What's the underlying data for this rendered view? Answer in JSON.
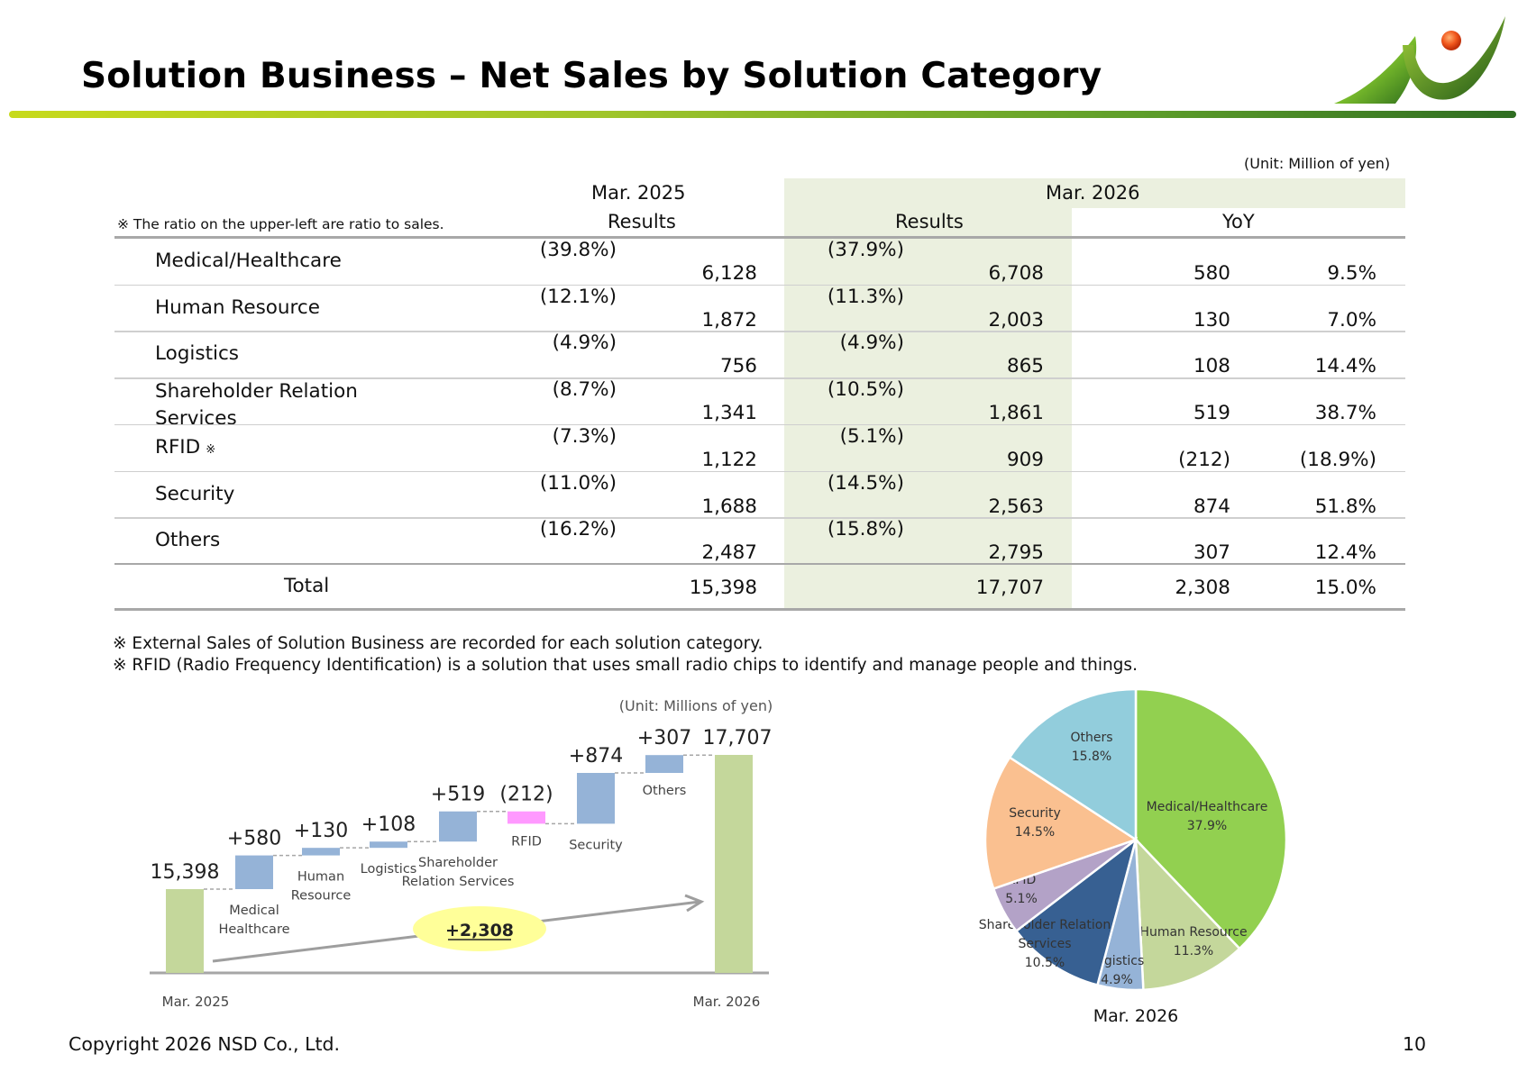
{
  "header": {
    "title": "Solution Business – Net Sales by Solution Category",
    "unit": "(Unit: Million of yen)",
    "ratio_note": "※ The ratio on the upper-left are ratio to sales."
  },
  "table": {
    "col_group_2025": "Mar. 2025",
    "col_group_2026": "Mar. 2026",
    "col_results_2025": "Results",
    "col_results_2026": "Results",
    "col_yoy": "YoY",
    "rows": [
      {
        "label": "Medical/Healthcare",
        "ratio_2025": "(39.8%)",
        "value_2025": "6,128",
        "ratio_2026": "(37.9%)",
        "value_2026": "6,708",
        "yoy": "580",
        "yoy_pct": "9.5%"
      },
      {
        "label": "Human Resource",
        "ratio_2025": "(12.1%)",
        "value_2025": "1,872",
        "ratio_2026": "(11.3%)",
        "value_2026": "2,003",
        "yoy": "130",
        "yoy_pct": "7.0%"
      },
      {
        "label": "Logistics",
        "ratio_2025": "(4.9%)",
        "value_2025": "756",
        "ratio_2026": "(4.9%)",
        "value_2026": "865",
        "yoy": "108",
        "yoy_pct": "14.4%"
      },
      {
        "label": "Shareholder Relation",
        "label2": "Services",
        "ratio_2025": "(8.7%)",
        "value_2025": "1,341",
        "ratio_2026": "(10.5%)",
        "value_2026": "1,861",
        "yoy": "519",
        "yoy_pct": "38.7%"
      },
      {
        "label": "RFID",
        "mark": "※",
        "ratio_2025": "(7.3%)",
        "value_2025": "1,122",
        "ratio_2026": "(5.1%)",
        "value_2026": "909",
        "yoy": "(212)",
        "yoy_pct": "(18.9%)"
      },
      {
        "label": "Security",
        "ratio_2025": "(11.0%)",
        "value_2025": "1,688",
        "ratio_2026": "(14.5%)",
        "value_2026": "2,563",
        "yoy": "874",
        "yoy_pct": "51.8%"
      },
      {
        "label": "Others",
        "ratio_2025": "(16.2%)",
        "value_2025": "2,487",
        "ratio_2026": "(15.8%)",
        "value_2026": "2,795",
        "yoy": "307",
        "yoy_pct": "12.4%"
      }
    ],
    "total": {
      "label": "Total",
      "value_2025": "15,398",
      "value_2026": "17,707",
      "yoy": "2,308",
      "yoy_pct": "15.0%"
    }
  },
  "footnotes": [
    "※ External Sales of Solution Business are recorded for each solution category.",
    "※ RFID (Radio Frequency Identification) is a solution that uses small radio chips to identify and manage people and things."
  ],
  "chart_data": [
    {
      "type": "bar",
      "subtype": "waterfall",
      "unit_label": "(Unit: Millions of yen)",
      "start": {
        "category": "Mar. 2025",
        "value": 15398,
        "label": "15,398"
      },
      "steps": [
        {
          "name": "Medical\nHealthcare",
          "delta": 580,
          "label": "+580",
          "color": "#95b3d7"
        },
        {
          "name": "Human\nResource",
          "delta": 130,
          "label": "+130",
          "color": "#95b3d7"
        },
        {
          "name": "Logistics",
          "delta": 108,
          "label": "+108",
          "color": "#95b3d7"
        },
        {
          "name": "Shareholder\nRelation Services",
          "delta": 519,
          "label": "+519",
          "color": "#95b3d7"
        },
        {
          "name": "RFID",
          "delta": -212,
          "label": "(212)",
          "color": "#ff99ff"
        },
        {
          "name": "Security",
          "delta": 874,
          "label": "+874",
          "color": "#95b3d7"
        },
        {
          "name": "Others",
          "delta": 307,
          "label": "+307",
          "color": "#95b3d7"
        }
      ],
      "end": {
        "category": "Mar. 2026",
        "value": 17707,
        "label": "17,707"
      },
      "total_change_label": "+2,308",
      "endpoint_color": "#c4d79b",
      "x_labels": [
        "Mar. 2025",
        "Mar. 2026"
      ]
    },
    {
      "type": "pie",
      "caption": "Mar. 2026",
      "slices": [
        {
          "name": "Medical/Healthcare",
          "value": 37.9,
          "label": "37.9%",
          "color": "#92d050"
        },
        {
          "name": "Human Resource",
          "value": 11.3,
          "label": "11.3%",
          "color": "#c4d79b"
        },
        {
          "name": "Logistics",
          "value": 4.9,
          "label": "4.9%",
          "color": "#95b3d7"
        },
        {
          "name": "Shareholder Relation\nServices",
          "value": 10.5,
          "label": "10.5%",
          "color": "#376092"
        },
        {
          "name": "RFID",
          "value": 5.1,
          "label": "5.1%",
          "color": "#b3a2c7"
        },
        {
          "name": "Security",
          "value": 14.5,
          "label": "14.5%",
          "color": "#fac090"
        },
        {
          "name": "Others",
          "value": 15.8,
          "label": "15.8%",
          "color": "#92cddc"
        }
      ]
    }
  ],
  "footer": {
    "copyright": "Copyright 2026 NSD Co., Ltd.",
    "page": "10"
  }
}
